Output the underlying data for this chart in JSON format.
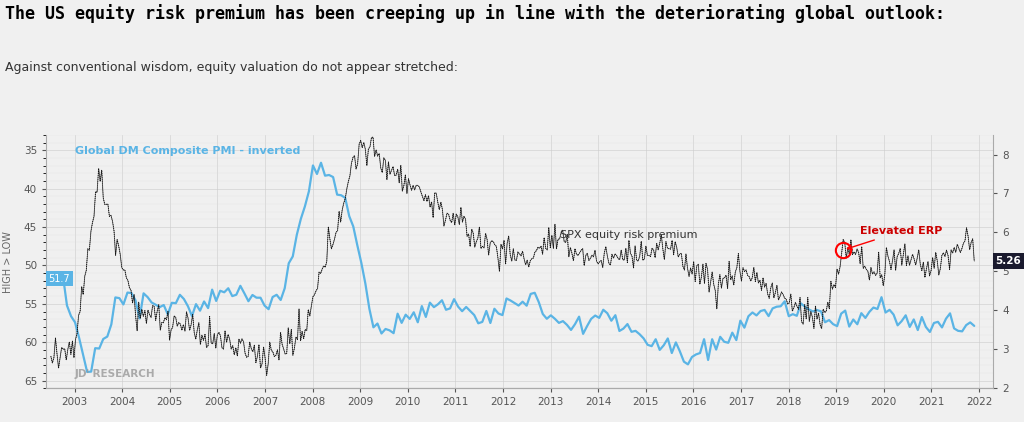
{
  "title": "The US equity risk premium has been creeping up in line with the deteriorating global outlook:",
  "subtitle": "Against conventional wisdom, equity valuation do not appear stretched:",
  "title_fontsize": 12,
  "subtitle_fontsize": 9,
  "background_color": "#f0f0f0",
  "plot_bg_color": "#f0f0f0",
  "left_yaxis": {
    "label": "HIGH > LOW",
    "ylim_top": 33,
    "ylim_bottom": 66,
    "ticks": [
      35,
      40,
      45,
      50,
      55,
      60,
      65
    ],
    "color": "#555555"
  },
  "right_yaxis": {
    "ylim_bottom": 2.0,
    "ylim_top": 8.5,
    "ticks": [
      2.0,
      3.0,
      4.0,
      5.0,
      6.0,
      7.0,
      8.0
    ],
    "color": "#555555"
  },
  "pmi_label": "Global DM Composite PMI - inverted",
  "pmi_color": "#5ab4e5",
  "erp_label": "SPX equity risk premium",
  "erp_color": "#111111",
  "elevated_erp_label": "Elevated ERP",
  "elevated_erp_color": "#cc0000",
  "last_value_label": "5.26",
  "last_value_bg": "#1a1a2e",
  "current_pmi_label": "51.7",
  "current_pmi_bg": "#5ab4e5",
  "watermark": "JDᴵ RESEARCH",
  "xmin": 2002.4,
  "xmax": 2022.3,
  "xticks": [
    2003,
    2004,
    2005,
    2006,
    2007,
    2008,
    2009,
    2010,
    2011,
    2012,
    2013,
    2014,
    2015,
    2016,
    2017,
    2018,
    2019,
    2020,
    2021,
    2022
  ]
}
